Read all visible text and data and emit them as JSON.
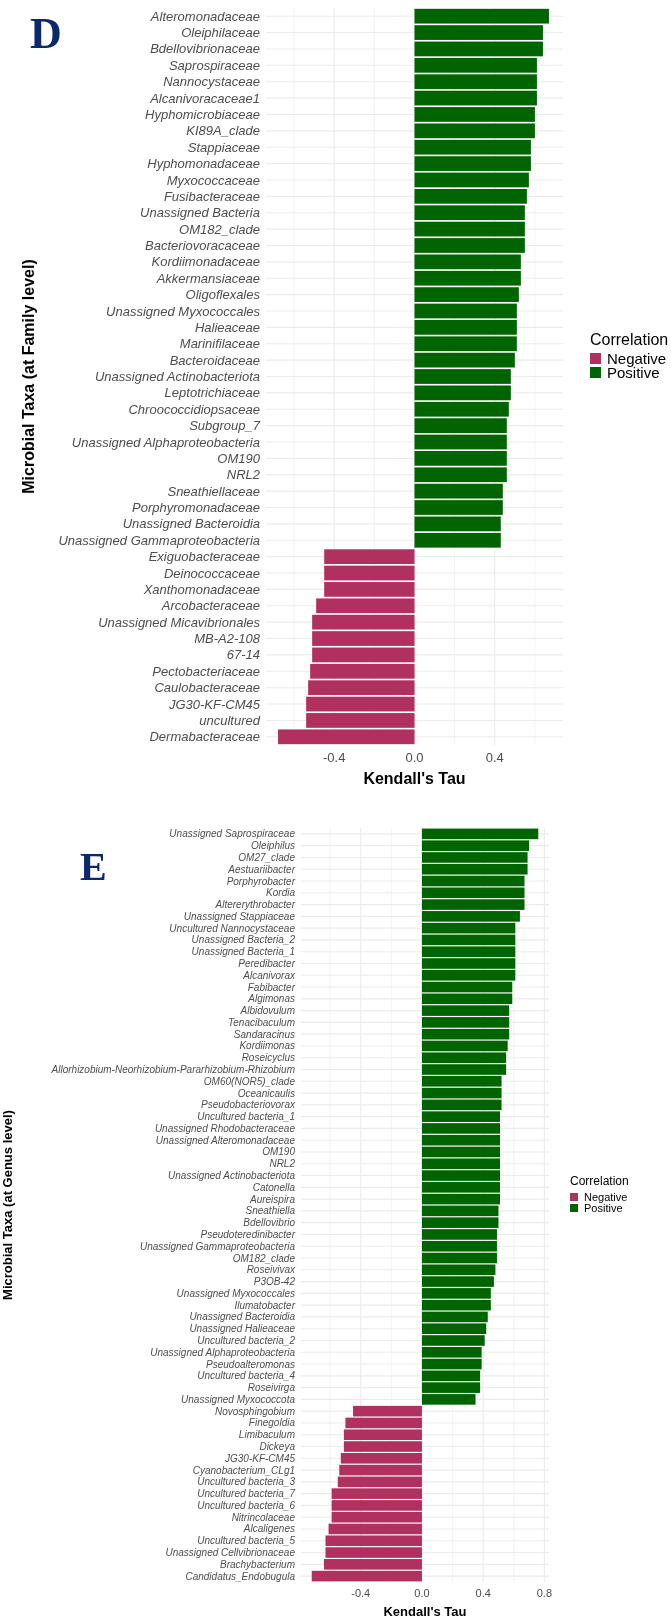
{
  "chart_data": [
    {
      "type": "bar",
      "orientation": "horizontal",
      "title": "D",
      "xlabel": "Kendall's Tau",
      "ylabel": "Microbial Taxa (at Family level)",
      "legend_title": "Correlation",
      "legend": "right",
      "grid": true,
      "categories": [
        "Alteromonadaceae",
        "Oleiphilaceae",
        "Bdellovibrionaceae",
        "Saprospiraceae",
        "Nannocystaceae",
        "Alcanivoracaceae1",
        "Hyphomicrobiaceae",
        "KI89A_clade",
        "Stappiaceae",
        "Hyphomonadaceae",
        "Myxococcaceae",
        "Fusibacteraceae",
        "Unassigned Bacteria",
        "OM182_clade",
        "Bacteriovoracaceae",
        "Kordiimonadaceae",
        "Akkermansiaceae",
        "Oligoflexales",
        "Unassigned Myxococcales",
        "Halieaceae",
        "Marinifilaceae",
        "Bacteroidaceae",
        "Unassigned Actinobacteriota",
        "Leptotrichiaceae",
        "Chroococcidiopsaceae",
        "Subgroup_7",
        "Unassigned Alphaproteobacteria",
        "OM190",
        "NRL2",
        "Sneathiellaceae",
        "Porphyromonadaceae",
        "Unassigned Bacteroidia",
        "Unassigned Gammaproteobacteria",
        "Exiguobacteraceae",
        "Deinococcaceae",
        "Xanthomonadaceae",
        "Arcobacteraceae",
        "Unassigned Micavibrionales",
        "MB-A2-108",
        "67-14",
        "Pectobacteriaceae",
        "Caulobacteraceae",
        "JG30-KF-CM45",
        "uncultured",
        "Dermabacteraceae"
      ],
      "xlim": [
        -0.74,
        0.74
      ],
      "xticks": [
        {
          "value": -0.6,
          "label": null
        },
        -0.4,
        {
          "value": -0.2,
          "label": null
        },
        {
          "value": 0,
          "label": "0.0"
        },
        {
          "value": 0.2,
          "label": null
        },
        0.4,
        {
          "value": 0.6,
          "label": null
        }
      ],
      "series": [
        {
          "name": "Negative",
          "color": "#b03060",
          "values": [
            null,
            null,
            null,
            null,
            null,
            null,
            null,
            null,
            null,
            null,
            null,
            null,
            null,
            null,
            null,
            null,
            null,
            null,
            null,
            null,
            null,
            null,
            null,
            null,
            null,
            null,
            null,
            null,
            null,
            null,
            null,
            null,
            null,
            -0.45,
            -0.45,
            -0.45,
            -0.49,
            -0.51,
            -0.51,
            -0.51,
            -0.52,
            -0.53,
            -0.54,
            -0.54,
            -0.68
          ]
        },
        {
          "name": "Positive",
          "color": "#006400",
          "values": [
            0.67,
            0.64,
            0.64,
            0.61,
            0.61,
            0.61,
            0.6,
            0.6,
            0.58,
            0.58,
            0.57,
            0.56,
            0.55,
            0.55,
            0.55,
            0.53,
            0.53,
            0.52,
            0.51,
            0.51,
            0.51,
            0.5,
            0.48,
            0.48,
            0.47,
            0.46,
            0.46,
            0.46,
            0.46,
            0.44,
            0.44,
            0.43,
            0.43,
            null,
            null,
            null,
            null,
            null,
            null,
            null,
            null,
            null,
            null,
            null,
            null
          ]
        }
      ]
    },
    {
      "type": "bar",
      "orientation": "horizontal",
      "title": "E",
      "xlabel": "Kendall's Tau",
      "ylabel": "Microbial Taxa (at Genus level)",
      "legend_title": "Correlation",
      "legend": "right",
      "grid": true,
      "categories": [
        "Unassigned Saprospiraceae",
        "Oleiphilus",
        "OM27_clade",
        "Aestuariibacter",
        "Porphyrobacter",
        "Kordia",
        "Altererythrobacter",
        "Unassigned Stappiaceae",
        "Uncultured Nannocystaceae",
        "Unassigned Bacteria_2",
        "Unassigned Bacteria_1",
        "Peredibacter",
        "Alcanivorax",
        "Fabibacter",
        "Algimonas",
        "Albidovulum",
        "Tenacibaculum",
        "Sandaracinus",
        "Kordiimonas",
        "Roseicyclus",
        "Allorhizobium-Neorhizobium-Pararhizobium-Rhizobium",
        "OM60(NOR5)_clade",
        "Oceanicaulis",
        "Pseudobacteriovorax",
        "Uncultured bacteria_1",
        "Unassigned Rhodobacteraceae",
        "Unassigned Alteromonadaceae",
        "OM190",
        "NRL2",
        "Unassigned Actinobacteriota",
        "Catonella",
        "Aureispira",
        "Sneathiella",
        "Bdellovibrio",
        "Pseudoteredinibacter",
        "Unassigned Gammaproteobacteria",
        "OM182_clade",
        "Roseivivax",
        "P3OB-42",
        "Unassigned Myxococcales",
        "Ilumatobacter",
        "Unassigned Bacteroidia",
        "Unassigned Halieaceae",
        "Uncultured bacteria_2",
        "Unassigned Alphaproteobacteria",
        "Pseudoalteromonas",
        "Uncultured bacteria_4",
        "Roseivirga",
        "Unassigned Myxococcota",
        "Novosphingobium",
        "Finegoldia",
        "Limibaculum",
        "Dickeya",
        "JG30-KF-CM45",
        "Cyanobacterium_CLg1",
        "Uncultured bacteria_3",
        "Uncultured bacteria_7",
        "Uncultured bacteria_6",
        "Nitrincolaceae",
        "Alcaligenes",
        "Uncultured bacteria_5",
        "Unassigned Cellvibrionaceae",
        "Brachybacterium",
        "Candidatus_Endobugula"
      ],
      "xlim": [
        -0.79,
        0.83
      ],
      "xticks": [
        {
          "value": -0.6,
          "label": null
        },
        -0.4,
        {
          "value": -0.2,
          "label": null
        },
        {
          "value": 0,
          "label": "0.0"
        },
        {
          "value": 0.2,
          "label": null
        },
        0.4,
        {
          "value": 0.6,
          "label": null
        },
        0.8
      ],
      "series": [
        {
          "name": "Negative",
          "color": "#b03060",
          "values": [
            null,
            null,
            null,
            null,
            null,
            null,
            null,
            null,
            null,
            null,
            null,
            null,
            null,
            null,
            null,
            null,
            null,
            null,
            null,
            null,
            null,
            null,
            null,
            null,
            null,
            null,
            null,
            null,
            null,
            null,
            null,
            null,
            null,
            null,
            null,
            null,
            null,
            null,
            null,
            null,
            null,
            null,
            null,
            null,
            null,
            null,
            null,
            null,
            null,
            -0.45,
            -0.5,
            -0.51,
            -0.51,
            -0.53,
            -0.54,
            -0.55,
            -0.59,
            -0.59,
            -0.59,
            -0.61,
            -0.63,
            -0.63,
            -0.64,
            -0.72
          ]
        },
        {
          "name": "Positive",
          "color": "#006400",
          "values": [
            0.76,
            0.7,
            0.69,
            0.69,
            0.67,
            0.67,
            0.67,
            0.64,
            0.61,
            0.61,
            0.61,
            0.61,
            0.61,
            0.59,
            0.59,
            0.57,
            0.57,
            0.57,
            0.56,
            0.55,
            0.55,
            0.52,
            0.52,
            0.52,
            0.51,
            0.51,
            0.51,
            0.51,
            0.51,
            0.51,
            0.51,
            0.51,
            0.5,
            0.5,
            0.49,
            0.49,
            0.49,
            0.48,
            0.47,
            0.45,
            0.45,
            0.43,
            0.42,
            0.41,
            0.39,
            0.39,
            0.38,
            0.38,
            0.35,
            null,
            null,
            null,
            null,
            null,
            null,
            null,
            null,
            null,
            null,
            null,
            null,
            null,
            null,
            null
          ]
        }
      ]
    }
  ]
}
